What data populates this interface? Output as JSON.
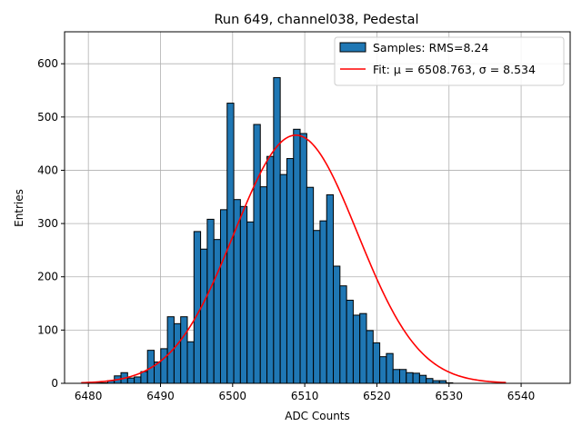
{
  "chart_data": {
    "type": "bar",
    "title": "Run 649, channel038, Pedestal",
    "xlabel": "ADC Counts",
    "ylabel": "Entries",
    "xlim": [
      6476.7,
      6546.8
    ],
    "ylim": [
      0,
      660
    ],
    "xticks": [
      6480,
      6490,
      6500,
      6510,
      6520,
      6530,
      6540
    ],
    "yticks": [
      0,
      100,
      200,
      300,
      400,
      500,
      600
    ],
    "grid": true,
    "legend": {
      "placement": "upper-right",
      "entries": [
        {
          "kind": "bar",
          "label": "Samples: RMS=8.24"
        },
        {
          "kind": "line",
          "label": "Fit: μ = 6508.763, σ = 8.534"
        }
      ]
    },
    "histogram": {
      "name": "Samples",
      "bin_edges": [
        6479.0,
        6479.92,
        6480.84,
        6481.76,
        6482.68,
        6483.6,
        6484.52,
        6485.44,
        6486.36,
        6487.28,
        6488.2,
        6489.12,
        6490.04,
        6490.96,
        6491.88,
        6492.8,
        6493.72,
        6494.64,
        6495.56,
        6496.48,
        6497.4,
        6498.32,
        6499.24,
        6500.16,
        6501.08,
        6502.0,
        6502.92,
        6503.84,
        6504.76,
        6505.68,
        6506.6,
        6507.52,
        6508.44,
        6509.36,
        6510.28,
        6511.2,
        6512.12,
        6513.04,
        6513.96,
        6514.88,
        6515.8,
        6516.72,
        6517.64,
        6518.56,
        6519.48,
        6520.4,
        6521.32,
        6522.24,
        6523.16,
        6524.08,
        6525.0,
        6525.92,
        6526.84,
        6527.76,
        6528.68,
        6529.6,
        6530.52,
        6531.44,
        6532.36,
        6533.28,
        6534.2,
        6535.12
      ],
      "counts": [
        0,
        1,
        2,
        1,
        5,
        14,
        20,
        10,
        12,
        22,
        62,
        40,
        65,
        125,
        112,
        125,
        78,
        285,
        252,
        308,
        270,
        326,
        526,
        345,
        332,
        303,
        486,
        369,
        426,
        574,
        392,
        422,
        477,
        469,
        368,
        287,
        305,
        354,
        220,
        183,
        156,
        128,
        131,
        99,
        76,
        50,
        56,
        26,
        26,
        20,
        19,
        15,
        9,
        5,
        5,
        1,
        0,
        0,
        0,
        0,
        0
      ]
    },
    "fit": {
      "name": "Fit",
      "mu": 6508.763,
      "sigma": 8.534,
      "amplitude": 466,
      "x_range": [
        6479.0,
        6537.9
      ]
    },
    "colors": {
      "bar_fill": "#1f77b4",
      "bar_edge": "#000000",
      "fit_line": "#ff0000",
      "grid": "#b0b0b0"
    }
  }
}
